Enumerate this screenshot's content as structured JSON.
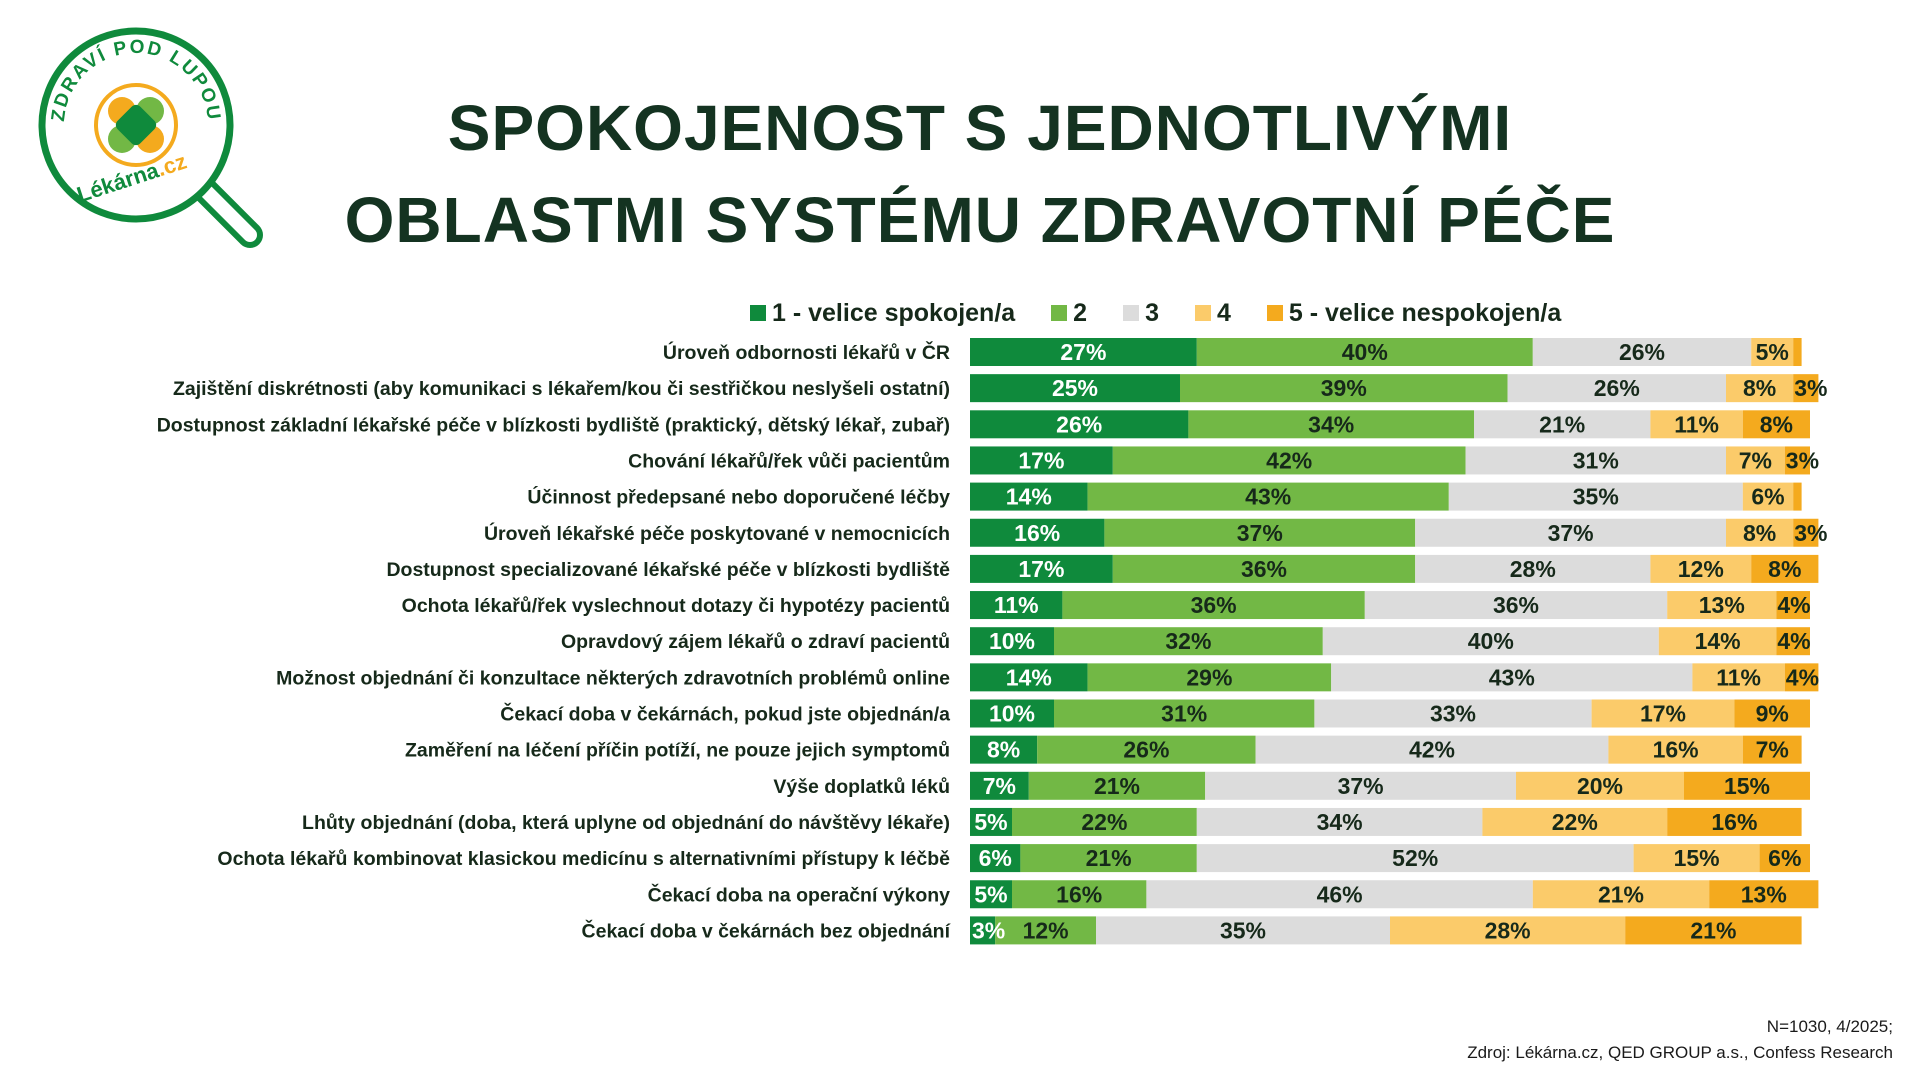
{
  "logo": {
    "ring_text": "ZDRAVÍ POD LUPOU",
    "brand": "Lékárna",
    "brand_suffix": ".cz"
  },
  "title_line1": "SPOKOJENOST S JEDNOTLIVÝMI",
  "title_line2": "OBLASTMI SYSTÉMU ZDRAVOTNÍ PÉČE",
  "colors": {
    "s1": "#0f8a3c",
    "s2": "#72b845",
    "s3": "#dcdcdc",
    "s4": "#fbcb6a",
    "s5": "#f4aa1e",
    "label_on_dark": "#ffffff",
    "label_on_light": "#16291a"
  },
  "legend": [
    {
      "label": "1 - velice spokojen/a",
      "color": "#0f8a3c"
    },
    {
      "label": "2",
      "color": "#72b845"
    },
    {
      "label": "3",
      "color": "#dcdcdc"
    },
    {
      "label": "4",
      "color": "#fbcb6a"
    },
    {
      "label": "5 - velice nespokojen/a",
      "color": "#f4aa1e"
    }
  ],
  "chart_data": {
    "type": "bar",
    "orientation": "horizontal",
    "stacked": true,
    "unit": "%",
    "xlim": [
      0,
      100
    ],
    "categories": [
      "Úroveň odbornosti lékařů v ČR",
      "Zajištění diskrétnosti (aby komunikaci s lékařem/kou či sestřičkou neslyšeli ostatní)",
      "Dostupnost základní lékařské péče v blízkosti bydliště (praktický, dětský lékař, zubař)",
      "Chování lékařů/řek vůči pacientům",
      "Účinnost předepsané nebo doporučené léčby",
      "Úroveň lékařské péče poskytované v nemocnicích",
      "Dostupnost specializované lékařské péče v blízkosti bydliště",
      "Ochota lékařů/řek vyslechnout dotazy či hypotézy pacientů",
      "Opravdový zájem lékařů o zdraví pacientů",
      "Možnost objednání či konzultace některých zdravotních problémů online",
      "Čekací doba v čekárnách, pokud jste objednán/a",
      "Zaměření na léčení příčin potíží, ne pouze jejich symptomů",
      "Výše doplatků léků",
      "Lhůty objednání (doba, která uplyne od objednání do návštěvy lékaře)",
      "Ochota lékařů kombinovat klasickou medicínu s alternativními přístupy k léčbě",
      "Čekací doba na operační výkony",
      "Čekací doba v čekárnách bez objednání"
    ],
    "series": [
      {
        "name": "1 - velice spokojen/a",
        "values": [
          27,
          25,
          26,
          17,
          14,
          16,
          17,
          11,
          10,
          14,
          10,
          8,
          7,
          5,
          6,
          5,
          3
        ]
      },
      {
        "name": "2",
        "values": [
          40,
          39,
          34,
          42,
          43,
          37,
          36,
          36,
          32,
          29,
          31,
          26,
          21,
          22,
          21,
          16,
          12
        ]
      },
      {
        "name": "3",
        "values": [
          26,
          26,
          21,
          31,
          35,
          37,
          28,
          36,
          40,
          43,
          33,
          42,
          37,
          34,
          52,
          46,
          35
        ]
      },
      {
        "name": "4",
        "values": [
          5,
          8,
          11,
          7,
          6,
          8,
          12,
          13,
          14,
          11,
          17,
          16,
          20,
          22,
          15,
          21,
          28
        ]
      },
      {
        "name": "5 - velice nespokojen/a",
        "values": [
          1,
          3,
          8,
          3,
          1,
          3,
          8,
          4,
          4,
          4,
          9,
          7,
          15,
          16,
          6,
          13,
          21
        ]
      }
    ],
    "labels": [
      [
        "27%",
        "40%",
        "26%",
        "5%",
        ""
      ],
      [
        "25%",
        "39%",
        "26%",
        "8%",
        "3%"
      ],
      [
        "26%",
        "34%",
        "21%",
        "11%",
        "8%"
      ],
      [
        "17%",
        "42%",
        "31%",
        "7%",
        "3%"
      ],
      [
        "14%",
        "43%",
        "35%",
        "6%",
        ""
      ],
      [
        "16%",
        "37%",
        "37%",
        "8%",
        "3%"
      ],
      [
        "17%",
        "36%",
        "28%",
        "12%",
        "8%"
      ],
      [
        "11%",
        "36%",
        "36%",
        "13%",
        "4%"
      ],
      [
        "10%",
        "32%",
        "40%",
        "14%",
        "4%"
      ],
      [
        "14%",
        "29%",
        "43%",
        "11%",
        "4%"
      ],
      [
        "10%",
        "31%",
        "33%",
        "17%",
        "9%"
      ],
      [
        "8%",
        "26%",
        "42%",
        "16%",
        "7%"
      ],
      [
        "7%",
        "21%",
        "37%",
        "20%",
        "15%"
      ],
      [
        "5%",
        "22%",
        "34%",
        "22%",
        "16%"
      ],
      [
        "6%",
        "21%",
        "52%",
        "15%",
        "6%"
      ],
      [
        "5%",
        "16%",
        "46%",
        "21%",
        "13%"
      ],
      [
        "3%",
        "12%",
        "35%",
        "28%",
        "21%"
      ]
    ]
  },
  "footnote_line1": "N=1030, 4/2025;",
  "footnote_line2": "Zdroj: Lékárna.cz, QED GROUP a.s., Confess Research"
}
